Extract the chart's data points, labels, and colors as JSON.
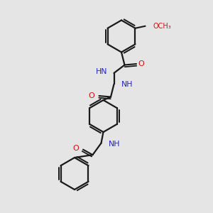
{
  "bg_color": "#e5e5e5",
  "bond_color": "#1a1a1a",
  "N_color": "#2222cc",
  "O_color": "#cc1111",
  "fig_size": [
    3.0,
    3.0
  ],
  "dpi": 100,
  "xlim": [
    0,
    10
  ],
  "ylim": [
    0,
    10
  ]
}
